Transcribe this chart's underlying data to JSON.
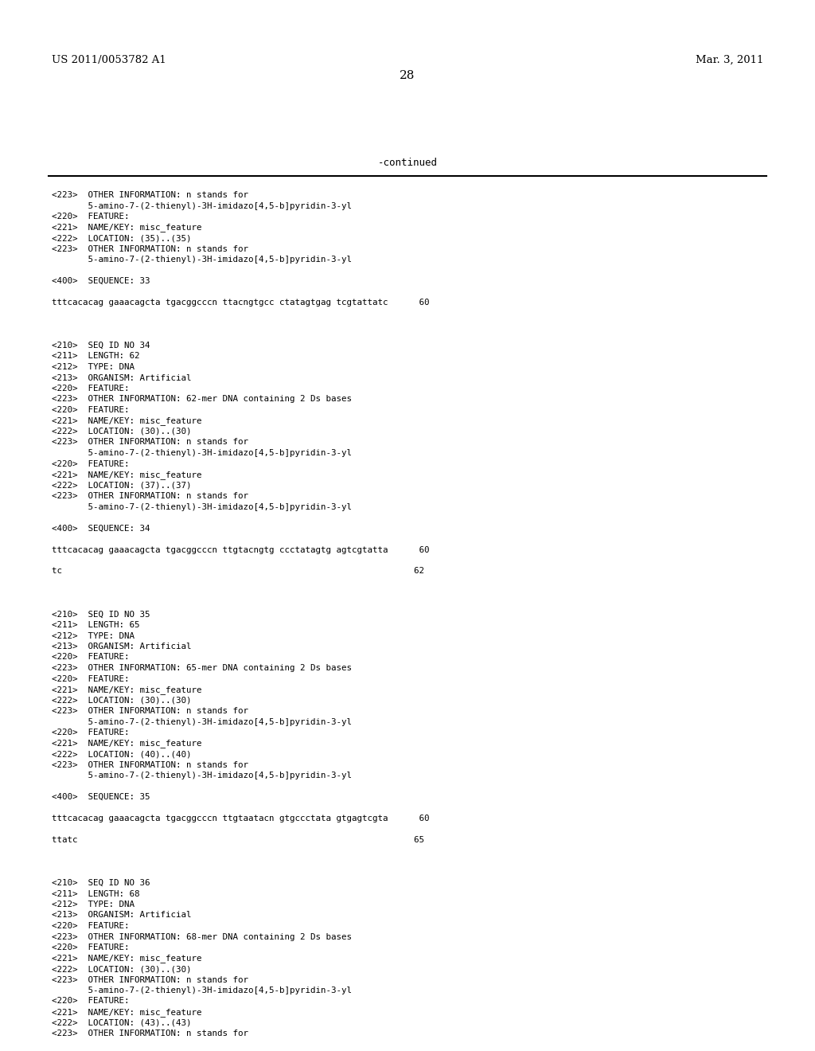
{
  "bg_color": "#ffffff",
  "header_left": "US 2011/0053782 A1",
  "header_right": "Mar. 3, 2011",
  "page_number": "28",
  "continued_text": "-continued",
  "content_lines": [
    "<223>  OTHER INFORMATION: n stands for",
    "       5-amino-7-(2-thienyl)-3H-imidazo[4,5-b]pyridin-3-yl",
    "<220>  FEATURE:",
    "<221>  NAME/KEY: misc_feature",
    "<222>  LOCATION: (35)..(35)",
    "<223>  OTHER INFORMATION: n stands for",
    "       5-amino-7-(2-thienyl)-3H-imidazo[4,5-b]pyridin-3-yl",
    "",
    "<400>  SEQUENCE: 33",
    "",
    "tttcacacag gaaacagcta tgacggcccn ttacngtgcc ctatagtgag tcgtattatc      60",
    "",
    "",
    "",
    "<210>  SEQ ID NO 34",
    "<211>  LENGTH: 62",
    "<212>  TYPE: DNA",
    "<213>  ORGANISM: Artificial",
    "<220>  FEATURE:",
    "<223>  OTHER INFORMATION: 62-mer DNA containing 2 Ds bases",
    "<220>  FEATURE:",
    "<221>  NAME/KEY: misc_feature",
    "<222>  LOCATION: (30)..(30)",
    "<223>  OTHER INFORMATION: n stands for",
    "       5-amino-7-(2-thienyl)-3H-imidazo[4,5-b]pyridin-3-yl",
    "<220>  FEATURE:",
    "<221>  NAME/KEY: misc_feature",
    "<222>  LOCATION: (37)..(37)",
    "<223>  OTHER INFORMATION: n stands for",
    "       5-amino-7-(2-thienyl)-3H-imidazo[4,5-b]pyridin-3-yl",
    "",
    "<400>  SEQUENCE: 34",
    "",
    "tttcacacag gaaacagcta tgacggcccn ttgtacngtg ccctatagtg agtcgtatta      60",
    "",
    "tc                                                                    62",
    "",
    "",
    "",
    "<210>  SEQ ID NO 35",
    "<211>  LENGTH: 65",
    "<212>  TYPE: DNA",
    "<213>  ORGANISM: Artificial",
    "<220>  FEATURE:",
    "<223>  OTHER INFORMATION: 65-mer DNA containing 2 Ds bases",
    "<220>  FEATURE:",
    "<221>  NAME/KEY: misc_feature",
    "<222>  LOCATION: (30)..(30)",
    "<223>  OTHER INFORMATION: n stands for",
    "       5-amino-7-(2-thienyl)-3H-imidazo[4,5-b]pyridin-3-yl",
    "<220>  FEATURE:",
    "<221>  NAME/KEY: misc_feature",
    "<222>  LOCATION: (40)..(40)",
    "<223>  OTHER INFORMATION: n stands for",
    "       5-amino-7-(2-thienyl)-3H-imidazo[4,5-b]pyridin-3-yl",
    "",
    "<400>  SEQUENCE: 35",
    "",
    "tttcacacag gaaacagcta tgacggcccn ttgtaatacn gtgccctata gtgagtcgta      60",
    "",
    "ttatc                                                                 65",
    "",
    "",
    "",
    "<210>  SEQ ID NO 36",
    "<211>  LENGTH: 68",
    "<212>  TYPE: DNA",
    "<213>  ORGANISM: Artificial",
    "<220>  FEATURE:",
    "<223>  OTHER INFORMATION: 68-mer DNA containing 2 Ds bases",
    "<220>  FEATURE:",
    "<221>  NAME/KEY: misc_feature",
    "<222>  LOCATION: (30)..(30)",
    "<223>  OTHER INFORMATION: n stands for",
    "       5-amino-7-(2-thienyl)-3H-imidazo[4,5-b]pyridin-3-yl",
    "<220>  FEATURE:",
    "<221>  NAME/KEY: misc_feature",
    "<222>  LOCATION: (43)..(43)",
    "<223>  OTHER INFORMATION: n stands for"
  ]
}
